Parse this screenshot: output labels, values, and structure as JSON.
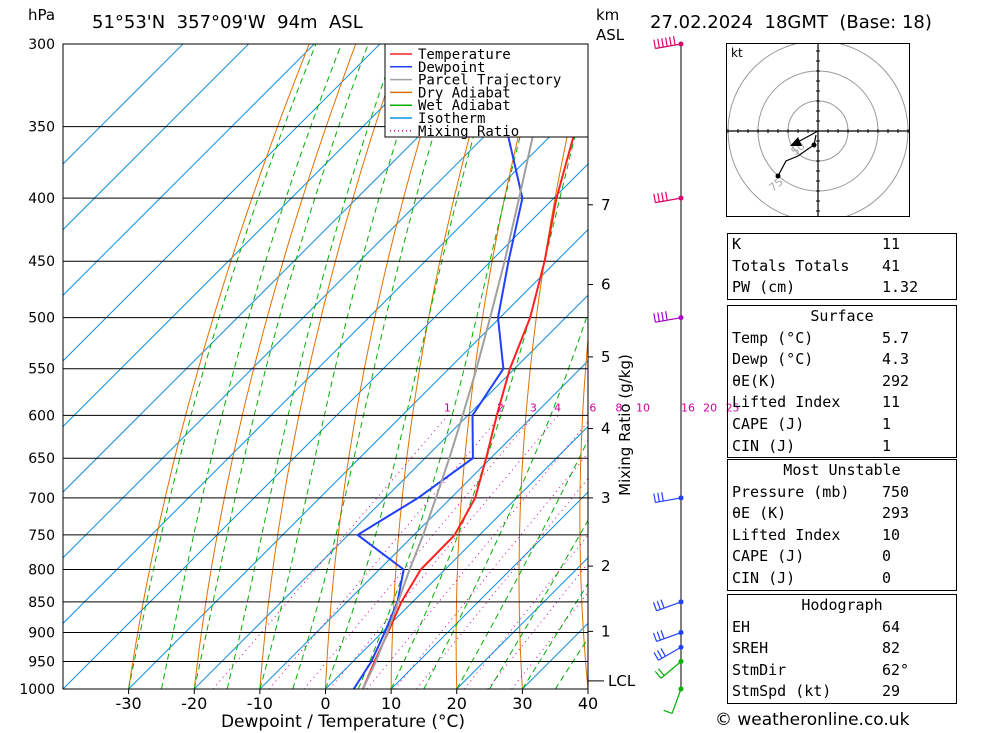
{
  "header": {
    "unit_left": "hPa",
    "location": "51°53'N  357°09'W  94m  ASL",
    "unit_km": "km",
    "unit_asl": "ASL",
    "datetime": "27.02.2024  18GMT  (Base: 18)"
  },
  "footer": "© weatheronline.co.uk",
  "chart_data": {
    "type": "line",
    "title": "",
    "xlabel": "Dewpoint / Temperature (°C)",
    "ylabel": "hPa",
    "mixing_ratio_label": "Mixing Ratio (g/kg)",
    "pressure_levels": [
      300,
      350,
      400,
      450,
      500,
      550,
      600,
      650,
      700,
      750,
      800,
      850,
      900,
      950,
      1000
    ],
    "x_ticks": [
      -30,
      -20,
      -10,
      0,
      10,
      20,
      30,
      40
    ],
    "xlim": [
      -40,
      40
    ],
    "ylim": [
      1000,
      300
    ],
    "y_scale": "log",
    "km_ticks": [
      {
        "km": "1",
        "p": 898
      },
      {
        "km": "2",
        "p": 795
      },
      {
        "km": "3",
        "p": 700
      },
      {
        "km": "4",
        "p": 615
      },
      {
        "km": "5",
        "p": 538
      },
      {
        "km": "6",
        "p": 470
      },
      {
        "km": "7",
        "p": 405
      }
    ],
    "lcl": {
      "label": "LCL",
      "p": 985
    },
    "mixing_ratio_values": [
      "1",
      "2",
      "3",
      "4",
      "6",
      "8",
      "10",
      "16",
      "20",
      "25"
    ],
    "legend": {
      "placement": "top-right",
      "entries": [
        {
          "name": "Temperature",
          "color": "#ff2020"
        },
        {
          "name": "Dewpoint",
          "color": "#2040ff"
        },
        {
          "name": "Parcel Trajectory",
          "color": "#a0a0a0"
        },
        {
          "name": "Dry Adiabat",
          "color": "#e07000"
        },
        {
          "name": "Wet Adiabat",
          "color": "#00b000"
        },
        {
          "name": "Isotherm",
          "color": "#1090e0"
        },
        {
          "name": "Mixing Ratio",
          "color": "#d000a0"
        }
      ]
    },
    "series": [
      {
        "name": "Temperature",
        "color": "#ff2020",
        "points": [
          [
            1000,
            5.7
          ],
          [
            950,
            3.3
          ],
          [
            900,
            0.9
          ],
          [
            850,
            -1.7
          ],
          [
            800,
            -3.7
          ],
          [
            750,
            -3.8
          ],
          [
            700,
            -6.3
          ],
          [
            650,
            -10.7
          ],
          [
            600,
            -15.6
          ],
          [
            550,
            -20.7
          ],
          [
            500,
            -25.4
          ],
          [
            450,
            -31.8
          ],
          [
            400,
            -39.6
          ],
          [
            350,
            -47.5
          ],
          [
            300,
            -55.0
          ]
        ]
      },
      {
        "name": "Dewpoint",
        "color": "#2040ff",
        "points": [
          [
            1000,
            4.3
          ],
          [
            950,
            2.8
          ],
          [
            900,
            0.4
          ],
          [
            850,
            -2.3
          ],
          [
            800,
            -6.3
          ],
          [
            750,
            -18.6
          ],
          [
            700,
            -15.0
          ],
          [
            650,
            -12.7
          ],
          [
            600,
            -19.3
          ],
          [
            550,
            -21.7
          ],
          [
            500,
            -30.3
          ],
          [
            450,
            -37.3
          ],
          [
            400,
            -44.8
          ],
          [
            350,
            -58.2
          ],
          [
            300,
            -72.0
          ]
        ]
      },
      {
        "name": "Parcel Trajectory",
        "color": "#a0a0a0",
        "points": [
          [
            1000,
            5.7
          ],
          [
            950,
            3.5
          ],
          [
            900,
            0.8
          ],
          [
            850,
            -2.2
          ],
          [
            800,
            -5.4
          ],
          [
            750,
            -8.6
          ],
          [
            700,
            -12.3
          ],
          [
            650,
            -16.3
          ],
          [
            600,
            -20.8
          ],
          [
            550,
            -25.8
          ],
          [
            500,
            -31.5
          ],
          [
            450,
            -37.9
          ],
          [
            400,
            -45.3
          ],
          [
            350,
            -53.8
          ],
          [
            300,
            -63.5
          ]
        ]
      }
    ],
    "wind_barbs": [
      {
        "p": 1000,
        "dir": 200,
        "kt": 10
      },
      {
        "p": 950,
        "dir": 230,
        "kt": 20
      },
      {
        "p": 925,
        "dir": 240,
        "kt": 30
      },
      {
        "p": 900,
        "dir": 250,
        "kt": 35
      },
      {
        "p": 850,
        "dir": 250,
        "kt": 30
      },
      {
        "p": 700,
        "dir": 260,
        "kt": 30
      },
      {
        "p": 500,
        "dir": 260,
        "kt": 45
      },
      {
        "p": 400,
        "dir": 260,
        "kt": 45
      },
      {
        "p": 300,
        "dir": 260,
        "kt": 60
      }
    ],
    "hodograph": {
      "unit": "kt",
      "ring_labels": [
        "50",
        "75"
      ],
      "storm_motion": {
        "dir": 62,
        "kt": 29
      }
    }
  },
  "indices": [
    {
      "label": "K",
      "value": "11"
    },
    {
      "label": "Totals Totals",
      "value": "41"
    },
    {
      "label": "PW (cm)",
      "value": "1.32"
    }
  ],
  "surface": {
    "title": "Surface",
    "rows": [
      {
        "label": "Temp (°C)",
        "value": "5.7"
      },
      {
        "label": "Dewp (°C)",
        "value": "4.3"
      },
      {
        "label": "θE(K)",
        "value": "292"
      },
      {
        "label": "Lifted Index",
        "value": "11"
      },
      {
        "label": "CAPE (J)",
        "value": "1"
      },
      {
        "label": "CIN (J)",
        "value": "1"
      }
    ]
  },
  "most_unstable": {
    "title": "Most Unstable",
    "rows": [
      {
        "label": "Pressure (mb)",
        "value": "750"
      },
      {
        "label": "θE (K)",
        "value": "293"
      },
      {
        "label": "Lifted Index",
        "value": "10"
      },
      {
        "label": "CAPE (J)",
        "value": "0"
      },
      {
        "label": "CIN (J)",
        "value": "0"
      }
    ]
  },
  "hodograph_table": {
    "title": "Hodograph",
    "rows": [
      {
        "label": "EH",
        "value": "64"
      },
      {
        "label": "SREH",
        "value": "82"
      },
      {
        "label": "StmDir",
        "value": "62°"
      },
      {
        "label": "StmSpd (kt)",
        "value": "29"
      }
    ]
  }
}
